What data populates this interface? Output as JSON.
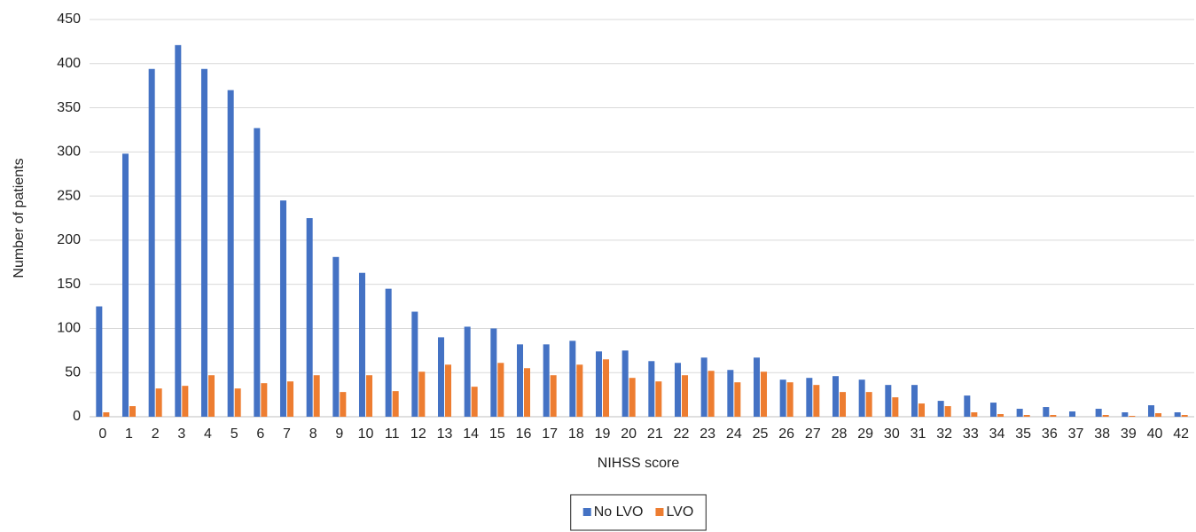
{
  "chart_data": {
    "type": "bar",
    "x_label": "NIHSS score",
    "y_label": "Number of patients",
    "categories": [
      "0",
      "1",
      "2",
      "3",
      "4",
      "5",
      "6",
      "7",
      "8",
      "9",
      "10",
      "11",
      "12",
      "13",
      "14",
      "15",
      "16",
      "17",
      "18",
      "19",
      "20",
      "21",
      "22",
      "23",
      "24",
      "25",
      "26",
      "27",
      "28",
      "29",
      "30",
      "31",
      "32",
      "33",
      "34",
      "35",
      "36",
      "37",
      "38",
      "39",
      "40",
      "42"
    ],
    "series": [
      {
        "name": "No LVO",
        "color": "#4472c4",
        "values": [
          125,
          298,
          394,
          421,
          394,
          370,
          327,
          245,
          225,
          181,
          163,
          145,
          119,
          90,
          102,
          100,
          82,
          82,
          86,
          74,
          75,
          63,
          61,
          67,
          53,
          67,
          42,
          44,
          46,
          42,
          36,
          36,
          18,
          24,
          16,
          9,
          11,
          6,
          9,
          5,
          13,
          5
        ]
      },
      {
        "name": "LVO",
        "color": "#ed7d31",
        "values": [
          5,
          12,
          32,
          35,
          47,
          32,
          38,
          40,
          47,
          28,
          47,
          29,
          51,
          59,
          34,
          61,
          55,
          47,
          59,
          65,
          44,
          40,
          47,
          52,
          39,
          51,
          39,
          36,
          28,
          28,
          22,
          15,
          12,
          5,
          3,
          2,
          2,
          0,
          2,
          1,
          4,
          2
        ]
      }
    ],
    "ylim": [
      0,
      450
    ],
    "yticks": [
      0,
      50,
      100,
      150,
      200,
      250,
      300,
      350,
      400,
      450
    ],
    "grid": true,
    "legend": "bottom"
  }
}
